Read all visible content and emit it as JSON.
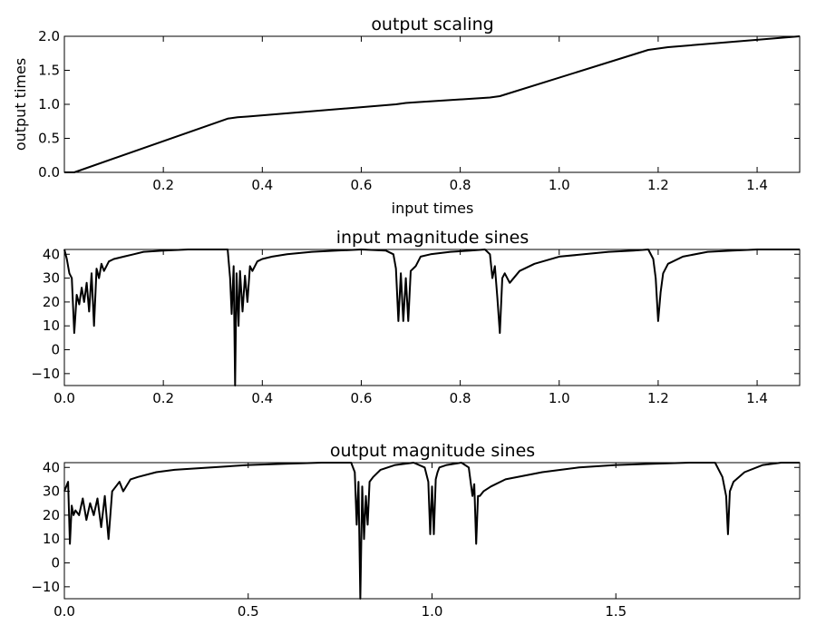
{
  "chart_data": [
    {
      "type": "line",
      "title": "output scaling",
      "xlabel": "input times",
      "ylabel": "output times",
      "xlim": [
        0.0,
        1.486
      ],
      "ylim": [
        0.0,
        2.0
      ],
      "xticks": [
        0.2,
        0.4,
        0.6,
        0.8,
        1.0,
        1.2,
        1.4
      ],
      "xtick_labels": [
        "0.2",
        "0.4",
        "0.6",
        "0.8",
        "1.0",
        "1.2",
        "1.4"
      ],
      "yticks": [
        0.0,
        0.5,
        1.0,
        1.5,
        2.0
      ],
      "ytick_labels": [
        "0.0",
        "0.5",
        "1.0",
        "1.5",
        "2.0"
      ],
      "grid": false,
      "series": [
        {
          "color": "#000000",
          "x": [
            0.0,
            0.02,
            0.33,
            0.35,
            0.37,
            0.67,
            0.69,
            0.71,
            0.86,
            0.88,
            1.18,
            1.2,
            1.22,
            1.486
          ],
          "y": [
            0.0,
            0.0,
            0.79,
            0.81,
            0.82,
            1.0,
            1.02,
            1.03,
            1.1,
            1.12,
            1.8,
            1.82,
            1.84,
            2.0
          ]
        }
      ]
    },
    {
      "type": "line",
      "title": "input magnitude sines",
      "xlabel": "",
      "ylabel": "",
      "xlim": [
        0.0,
        1.486
      ],
      "ylim": [
        -15,
        42
      ],
      "xticks": [
        0.0,
        0.2,
        0.4,
        0.6,
        0.8,
        1.0,
        1.2,
        1.4
      ],
      "xtick_labels": [
        "0.0",
        "0.2",
        "0.4",
        "0.6",
        "0.8",
        "1.0",
        "1.2",
        "1.4"
      ],
      "yticks": [
        -10,
        0,
        10,
        20,
        30,
        40
      ],
      "ytick_labels": [
        "−10",
        "0",
        "10",
        "20",
        "30",
        "40"
      ],
      "grid": false,
      "series": [
        {
          "color": "#000000",
          "x": [
            0.0,
            0.005,
            0.01,
            0.015,
            0.02,
            0.025,
            0.03,
            0.035,
            0.04,
            0.045,
            0.05,
            0.055,
            0.06,
            0.065,
            0.07,
            0.075,
            0.08,
            0.09,
            0.1,
            0.12,
            0.14,
            0.16,
            0.2,
            0.25,
            0.3,
            0.33,
            0.335,
            0.338,
            0.342,
            0.345,
            0.348,
            0.352,
            0.355,
            0.36,
            0.365,
            0.37,
            0.375,
            0.38,
            0.39,
            0.4,
            0.42,
            0.45,
            0.5,
            0.55,
            0.6,
            0.65,
            0.665,
            0.67,
            0.675,
            0.68,
            0.685,
            0.69,
            0.695,
            0.7,
            0.71,
            0.72,
            0.74,
            0.78,
            0.82,
            0.85,
            0.86,
            0.865,
            0.87,
            0.875,
            0.88,
            0.885,
            0.89,
            0.9,
            0.92,
            0.95,
            1.0,
            1.05,
            1.1,
            1.15,
            1.18,
            1.19,
            1.195,
            1.2,
            1.205,
            1.21,
            1.22,
            1.25,
            1.3,
            1.35,
            1.4,
            1.45,
            1.486
          ],
          "y": [
            42,
            38,
            32,
            30,
            7,
            23,
            19,
            26,
            20,
            28,
            16,
            32,
            10,
            34,
            30,
            36,
            33,
            37,
            38,
            39,
            40,
            41,
            41.5,
            42,
            42,
            42,
            30,
            15,
            35,
            -15,
            32,
            10,
            33,
            16,
            31,
            20,
            35,
            33,
            37,
            38,
            39,
            40,
            41,
            41.5,
            42,
            41.5,
            40,
            34,
            12,
            32,
            12,
            30,
            12,
            33,
            35,
            39,
            40,
            41,
            41.5,
            42,
            40,
            30,
            35,
            22,
            7,
            30,
            32,
            28,
            33,
            36,
            39,
            40,
            41,
            41.5,
            42,
            38,
            30,
            12,
            24,
            32,
            36,
            39,
            41,
            41.5,
            42,
            42,
            42
          ]
        }
      ]
    },
    {
      "type": "line",
      "title": "output magnitude sines",
      "xlabel": "",
      "ylabel": "",
      "xlim": [
        0.0,
        2.0
      ],
      "ylim": [
        -15,
        42
      ],
      "xticks": [
        0.0,
        0.5,
        1.0,
        1.5
      ],
      "xtick_labels": [
        "0.0",
        "0.5",
        "1.0",
        "1.5"
      ],
      "yticks": [
        -10,
        0,
        10,
        20,
        30,
        40
      ],
      "ytick_labels": [
        "−10",
        "0",
        "10",
        "20",
        "30",
        "40"
      ],
      "grid": false,
      "series": [
        {
          "color": "#000000",
          "x": [
            0.0,
            0.01,
            0.015,
            0.02,
            0.025,
            0.03,
            0.04,
            0.05,
            0.06,
            0.07,
            0.08,
            0.09,
            0.1,
            0.11,
            0.12,
            0.13,
            0.14,
            0.15,
            0.16,
            0.18,
            0.2,
            0.25,
            0.3,
            0.4,
            0.5,
            0.6,
            0.7,
            0.78,
            0.79,
            0.795,
            0.8,
            0.805,
            0.81,
            0.815,
            0.82,
            0.825,
            0.83,
            0.84,
            0.86,
            0.9,
            0.95,
            0.98,
            0.99,
            0.995,
            1.0,
            1.005,
            1.01,
            1.015,
            1.02,
            1.04,
            1.08,
            1.1,
            1.11,
            1.115,
            1.12,
            1.125,
            1.13,
            1.14,
            1.16,
            1.2,
            1.3,
            1.4,
            1.5,
            1.6,
            1.7,
            1.77,
            1.79,
            1.8,
            1.805,
            1.81,
            1.82,
            1.85,
            1.9,
            1.95,
            2.0
          ],
          "y": [
            30,
            34,
            8,
            24,
            20,
            22,
            20,
            27,
            18,
            25,
            20,
            27,
            15,
            28,
            10,
            30,
            32,
            34,
            30,
            35,
            36,
            38,
            39,
            40,
            41,
            41.5,
            42,
            42,
            38,
            16,
            34,
            -15,
            32,
            10,
            28,
            16,
            34,
            36,
            39,
            41,
            42,
            40,
            34,
            12,
            32,
            12,
            35,
            38,
            40,
            41,
            42,
            40,
            28,
            33,
            8,
            28,
            28,
            30,
            32,
            35,
            38,
            40,
            41,
            41.5,
            42,
            42,
            36,
            28,
            12,
            30,
            34,
            38,
            41,
            42,
            42
          ]
        }
      ]
    }
  ]
}
